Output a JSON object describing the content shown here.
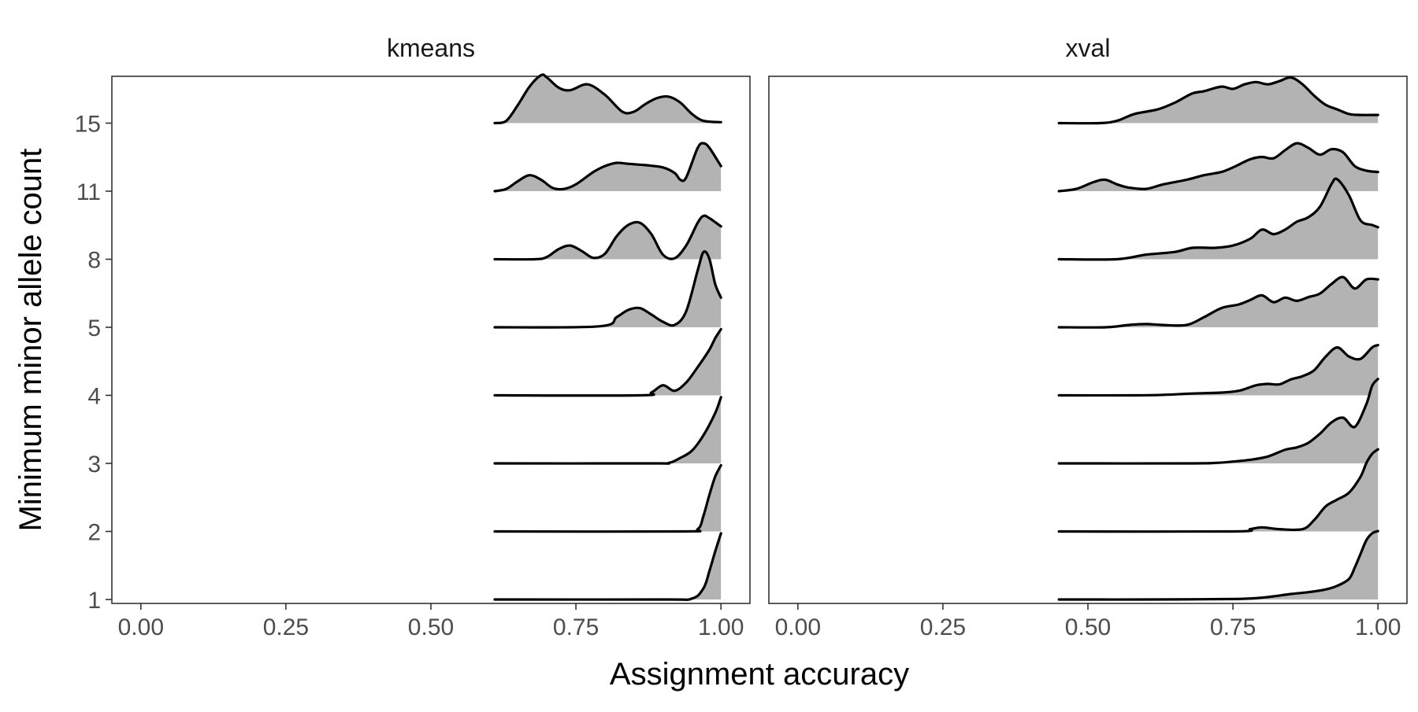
{
  "chart_data": {
    "type": "area",
    "subtype": "ridgeline",
    "xlabel": "Assignment accuracy",
    "ylabel": "Minimum minor allele count",
    "xlim": [
      -0.05,
      1.05
    ],
    "x_ticks": [
      "0.00",
      "0.25",
      "0.50",
      "0.75",
      "1.00"
    ],
    "x_tick_values": [
      0,
      0.25,
      0.5,
      0.75,
      1.0
    ],
    "y_categories": [
      "1",
      "2",
      "3",
      "4",
      "5",
      "8",
      "11",
      "15"
    ],
    "grid": false,
    "legend": "none",
    "colors": {
      "fill": "#b3b3b3",
      "line": "#000000",
      "frame": "#333333"
    },
    "panels": [
      {
        "label": "kmeans",
        "ridges": [
          {
            "category": "1",
            "x": [
              0.61,
              0.9,
              0.95,
              0.97,
              0.98,
              0.99,
              1.0
            ],
            "y": [
              0,
              0,
              0.02,
              0.25,
              0.62,
              1.05,
              1.45
            ]
          },
          {
            "category": "2",
            "x": [
              0.61,
              0.93,
              0.96,
              0.97,
              0.98,
              0.99,
              1.0
            ],
            "y": [
              0,
              0,
              0.05,
              0.35,
              0.8,
              1.2,
              1.45
            ]
          },
          {
            "category": "3",
            "x": [
              0.61,
              0.88,
              0.91,
              0.93,
              0.95,
              0.97,
              0.99,
              1.0
            ],
            "y": [
              0,
              0,
              0.01,
              0.12,
              0.28,
              0.62,
              1.1,
              1.45
            ]
          },
          {
            "category": "4",
            "x": [
              0.61,
              0.86,
              0.88,
              0.9,
              0.92,
              0.94,
              0.96,
              0.98,
              0.99,
              1.0
            ],
            "y": [
              0,
              0,
              0.06,
              0.22,
              0.1,
              0.28,
              0.62,
              1.0,
              1.25,
              1.45
            ]
          },
          {
            "category": "5",
            "x": [
              0.61,
              0.79,
              0.82,
              0.84,
              0.86,
              0.88,
              0.9,
              0.92,
              0.94,
              0.96,
              0.97,
              0.98,
              0.99,
              1.0
            ],
            "y": [
              0,
              0.02,
              0.22,
              0.38,
              0.42,
              0.28,
              0.12,
              0.05,
              0.35,
              1.25,
              1.65,
              1.5,
              0.95,
              0.65
            ]
          },
          {
            "category": "8",
            "x": [
              0.61,
              0.68,
              0.7,
              0.72,
              0.74,
              0.76,
              0.78,
              0.8,
              0.82,
              0.84,
              0.86,
              0.88,
              0.9,
              0.92,
              0.94,
              0.96,
              0.97,
              0.98,
              1.0
            ],
            "y": [
              0,
              0,
              0.05,
              0.22,
              0.3,
              0.18,
              0.03,
              0.12,
              0.5,
              0.75,
              0.8,
              0.55,
              0.1,
              0.02,
              0.3,
              0.8,
              0.95,
              0.9,
              0.72
            ]
          },
          {
            "category": "11",
            "x": [
              0.61,
              0.63,
              0.65,
              0.67,
              0.69,
              0.71,
              0.73,
              0.75,
              0.78,
              0.8,
              0.82,
              0.84,
              0.87,
              0.9,
              0.92,
              0.93,
              0.94,
              0.96,
              0.97,
              0.98,
              1.0
            ],
            "y": [
              0,
              0.05,
              0.22,
              0.35,
              0.25,
              0.07,
              0.05,
              0.15,
              0.42,
              0.55,
              0.62,
              0.6,
              0.57,
              0.52,
              0.4,
              0.25,
              0.3,
              0.95,
              1.05,
              0.95,
              0.55
            ]
          },
          {
            "category": "15",
            "x": [
              0.61,
              0.63,
              0.65,
              0.67,
              0.69,
              0.7,
              0.72,
              0.74,
              0.77,
              0.8,
              0.83,
              0.85,
              0.87,
              0.89,
              0.91,
              0.93,
              0.95,
              0.97,
              1.0
            ],
            "y": [
              0,
              0.05,
              0.4,
              0.8,
              1.05,
              1.0,
              0.78,
              0.72,
              0.85,
              0.62,
              0.25,
              0.25,
              0.42,
              0.55,
              0.58,
              0.45,
              0.2,
              0.05,
              0.02
            ]
          }
        ]
      },
      {
        "label": "xval",
        "ridges": [
          {
            "category": "1",
            "x": [
              0.45,
              0.6,
              0.75,
              0.8,
              0.85,
              0.88,
              0.91,
              0.93,
              0.95,
              0.96,
              0.97,
              0.98,
              0.99,
              1.0
            ],
            "y": [
              0,
              0,
              0.01,
              0.04,
              0.12,
              0.16,
              0.22,
              0.3,
              0.45,
              0.7,
              1.0,
              1.3,
              1.45,
              1.5
            ]
          },
          {
            "category": "2",
            "x": [
              0.45,
              0.75,
              0.78,
              0.8,
              0.83,
              0.87,
              0.89,
              0.91,
              0.93,
              0.95,
              0.97,
              0.98,
              0.99,
              1.0
            ],
            "y": [
              0,
              0,
              0.05,
              0.09,
              0.05,
              0.05,
              0.25,
              0.55,
              0.7,
              0.85,
              1.2,
              1.5,
              1.7,
              1.8
            ]
          },
          {
            "category": "3",
            "x": [
              0.45,
              0.67,
              0.72,
              0.75,
              0.78,
              0.81,
              0.84,
              0.86,
              0.88,
              0.9,
              0.92,
              0.94,
              0.96,
              0.98,
              0.99,
              1.0
            ],
            "y": [
              0,
              0,
              0.01,
              0.04,
              0.08,
              0.15,
              0.3,
              0.35,
              0.45,
              0.65,
              0.9,
              1.0,
              0.8,
              1.3,
              1.7,
              1.85
            ]
          },
          {
            "category": "4",
            "x": [
              0.45,
              0.58,
              0.63,
              0.68,
              0.73,
              0.76,
              0.79,
              0.81,
              0.83,
              0.85,
              0.87,
              0.89,
              0.91,
              0.93,
              0.95,
              0.97,
              0.99,
              1.0
            ],
            "y": [
              0,
              0,
              0.01,
              0.04,
              0.06,
              0.1,
              0.22,
              0.25,
              0.24,
              0.35,
              0.42,
              0.55,
              0.85,
              1.05,
              0.85,
              0.8,
              1.05,
              1.1
            ]
          },
          {
            "category": "5",
            "x": [
              0.45,
              0.53,
              0.57,
              0.6,
              0.63,
              0.67,
              0.7,
              0.73,
              0.76,
              0.78,
              0.8,
              0.82,
              0.84,
              0.86,
              0.88,
              0.9,
              0.92,
              0.94,
              0.96,
              0.98,
              1.0
            ],
            "y": [
              0,
              0,
              0.05,
              0.07,
              0.05,
              0.05,
              0.22,
              0.42,
              0.5,
              0.6,
              0.7,
              0.55,
              0.65,
              0.58,
              0.66,
              0.74,
              0.95,
              1.1,
              0.85,
              1.05,
              1.05
            ]
          },
          {
            "category": "8",
            "x": [
              0.45,
              0.55,
              0.6,
              0.65,
              0.68,
              0.72,
              0.75,
              0.78,
              0.8,
              0.82,
              0.84,
              0.86,
              0.88,
              0.9,
              0.92,
              0.93,
              0.95,
              0.97,
              0.99,
              1.0
            ],
            "y": [
              0,
              0,
              0.1,
              0.16,
              0.25,
              0.25,
              0.3,
              0.45,
              0.65,
              0.55,
              0.65,
              0.82,
              0.92,
              1.15,
              1.65,
              1.75,
              1.4,
              0.85,
              0.75,
              0.7
            ]
          },
          {
            "category": "11",
            "x": [
              0.45,
              0.48,
              0.51,
              0.53,
              0.55,
              0.57,
              0.6,
              0.63,
              0.67,
              0.7,
              0.73,
              0.75,
              0.78,
              0.8,
              0.82,
              0.84,
              0.86,
              0.88,
              0.9,
              0.92,
              0.94,
              0.96,
              0.98,
              1.0
            ],
            "y": [
              0,
              0.05,
              0.2,
              0.25,
              0.15,
              0.08,
              0.05,
              0.15,
              0.25,
              0.35,
              0.42,
              0.52,
              0.7,
              0.75,
              0.72,
              0.9,
              1.05,
              0.95,
              0.8,
              0.92,
              0.85,
              0.55,
              0.45,
              0.42
            ]
          },
          {
            "category": "15",
            "x": [
              0.45,
              0.52,
              0.55,
              0.58,
              0.62,
              0.65,
              0.68,
              0.7,
              0.73,
              0.75,
              0.77,
              0.79,
              0.81,
              0.83,
              0.85,
              0.87,
              0.89,
              0.91,
              0.93,
              0.95,
              0.97,
              1.0
            ],
            "y": [
              0,
              0,
              0.05,
              0.2,
              0.3,
              0.45,
              0.65,
              0.7,
              0.8,
              0.75,
              0.85,
              0.9,
              0.85,
              0.92,
              1.0,
              0.85,
              0.6,
              0.4,
              0.3,
              0.2,
              0.18,
              0.18
            ]
          }
        ]
      }
    ]
  }
}
